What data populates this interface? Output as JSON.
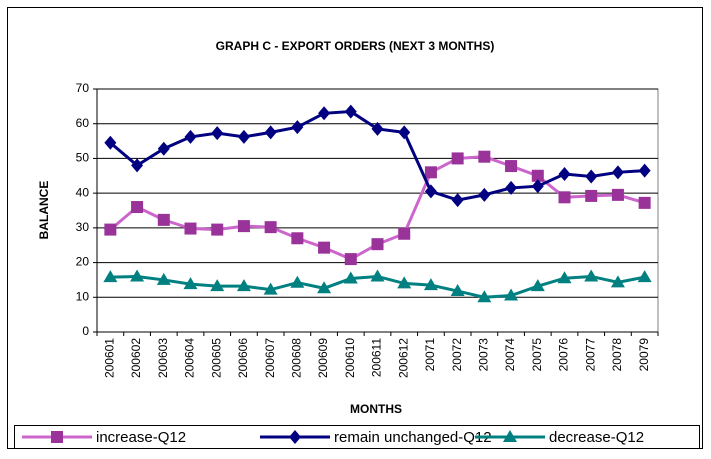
{
  "chart_data": {
    "type": "line",
    "title": "GRAPH C - EXPORT ORDERS (NEXT 3 MONTHS)",
    "x_label": "MONTHS",
    "y_label": "BALANCE",
    "categories": [
      "200601",
      "200602",
      "200603",
      "200604",
      "200605",
      "200606",
      "200607",
      "200608",
      "200609",
      "200610",
      "200611",
      "200612",
      "20071",
      "20072",
      "20073",
      "20074",
      "20075",
      "20076",
      "20077",
      "20078",
      "20079"
    ],
    "series": [
      {
        "name": "increase-Q12",
        "color": "#cc66cc",
        "marker_color": "#993399",
        "marker": "square",
        "values": [
          29.5,
          36,
          32.3,
          29.8,
          29.5,
          30.5,
          30.2,
          27,
          24.3,
          21,
          25.3,
          28.3,
          46,
          50,
          50.5,
          47.8,
          45,
          38.8,
          39.2,
          39.5,
          37.2
        ]
      },
      {
        "name": "remain unchanged-Q12",
        "color": "#000080",
        "marker_color": "#000080",
        "marker": "diamond",
        "values": [
          54.5,
          48,
          52.8,
          56.2,
          57.3,
          56.2,
          57.5,
          59,
          63,
          63.5,
          58.5,
          57.5,
          40.5,
          38,
          39.5,
          41.5,
          42,
          45.5,
          44.8,
          46,
          46.5
        ]
      },
      {
        "name": "decrease-Q12",
        "color": "#008080",
        "marker_color": "#008080",
        "marker": "triangle",
        "values": [
          15.8,
          16,
          15,
          13.8,
          13.2,
          13.2,
          12.2,
          14.2,
          12.6,
          15.4,
          16,
          14,
          13.5,
          11.8,
          10,
          10.5,
          13.2,
          15.5,
          16,
          14.3,
          15.8
        ]
      }
    ],
    "ylim": [
      0,
      70
    ],
    "yticks": [
      0,
      10,
      20,
      30,
      40,
      50,
      60,
      70
    ],
    "grid": true,
    "legend": "bottom"
  }
}
